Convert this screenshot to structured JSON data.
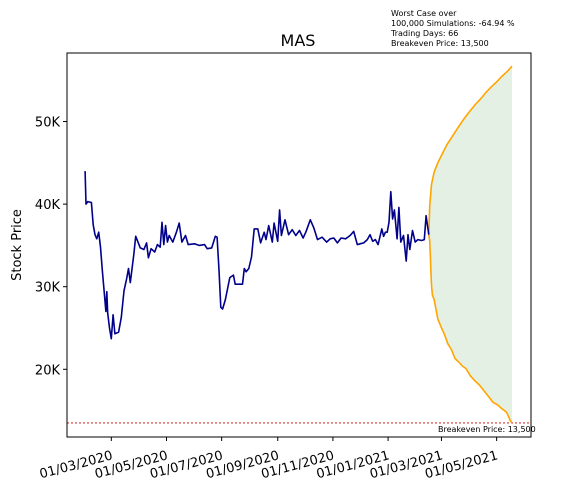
{
  "chart_data": {
    "type": "line",
    "title": "MAS",
    "xlabel": "",
    "ylabel": "Stock Price",
    "x_ticks": [
      "01/03/2020",
      "01/05/2020",
      "01/07/2020",
      "01/09/2020",
      "01/11/2020",
      "01/01/2021",
      "01/03/2021",
      "01/05/2021"
    ],
    "y_ticks": [
      "20K",
      "30K",
      "40K",
      "50K"
    ],
    "y_tick_values": [
      20000,
      30000,
      40000,
      50000
    ],
    "xlim": [
      "2020-01-12",
      "2021-06-08"
    ],
    "ylim": [
      11800,
      58300
    ],
    "grid": false,
    "colors": {
      "history": "#00008b",
      "upper_bound": "#ffa500",
      "lower_bound": "#ffa500",
      "projection_fill": "#e3f0e3",
      "breakeven_line": "#cc0000"
    },
    "annotations": {
      "worst_case": [
        "Worst Case over",
        "100,000 Simulations: -64.94 %",
        "Trading Days: 66",
        "Breakeven Price: 13,500"
      ],
      "breakeven_label": "Breakeven Price: 13,500"
    },
    "breakeven_price": 13500,
    "series": [
      {
        "role": "history",
        "points": [
          [
            "2020-02-01",
            44000
          ],
          [
            "2020-02-02",
            40000
          ],
          [
            "2020-02-04",
            40300
          ],
          [
            "2020-02-08",
            40200
          ],
          [
            "2020-02-10",
            37500
          ],
          [
            "2020-02-12",
            36300
          ],
          [
            "2020-02-14",
            35800
          ],
          [
            "2020-02-16",
            36600
          ],
          [
            "2020-02-18",
            34800
          ],
          [
            "2020-02-20",
            32000
          ],
          [
            "2020-02-22",
            29500
          ],
          [
            "2020-02-24",
            27000
          ],
          [
            "2020-02-25",
            29400
          ],
          [
            "2020-02-26",
            26800
          ],
          [
            "2020-02-28",
            25000
          ],
          [
            "2020-03-01",
            23700
          ],
          [
            "2020-03-03",
            26600
          ],
          [
            "2020-03-05",
            24300
          ],
          [
            "2020-03-09",
            24500
          ],
          [
            "2020-03-12",
            26300
          ],
          [
            "2020-03-15",
            29500
          ],
          [
            "2020-03-18",
            31000
          ],
          [
            "2020-03-20",
            32200
          ],
          [
            "2020-03-22",
            30500
          ],
          [
            "2020-03-26",
            34000
          ],
          [
            "2020-03-28",
            36100
          ],
          [
            "2020-04-02",
            34700
          ],
          [
            "2020-04-06",
            34500
          ],
          [
            "2020-04-09",
            35300
          ],
          [
            "2020-04-11",
            33500
          ],
          [
            "2020-04-14",
            34600
          ],
          [
            "2020-04-18",
            34200
          ],
          [
            "2020-04-21",
            35100
          ],
          [
            "2020-04-24",
            34800
          ],
          [
            "2020-04-26",
            37800
          ],
          [
            "2020-04-28",
            35100
          ],
          [
            "2020-04-30",
            37400
          ],
          [
            "2020-05-02",
            35400
          ],
          [
            "2020-05-04",
            36200
          ],
          [
            "2020-05-08",
            35400
          ],
          [
            "2020-05-12",
            36600
          ],
          [
            "2020-05-15",
            37700
          ],
          [
            "2020-05-18",
            35400
          ],
          [
            "2020-05-22",
            36200
          ],
          [
            "2020-05-25",
            35100
          ],
          [
            "2020-06-01",
            35200
          ],
          [
            "2020-06-06",
            35000
          ],
          [
            "2020-06-12",
            35100
          ],
          [
            "2020-06-15",
            34600
          ],
          [
            "2020-06-20",
            34700
          ],
          [
            "2020-06-24",
            36100
          ],
          [
            "2020-06-26",
            36000
          ],
          [
            "2020-06-28",
            32000
          ],
          [
            "2020-06-30",
            27500
          ],
          [
            "2020-07-02",
            27300
          ],
          [
            "2020-07-05",
            28400
          ],
          [
            "2020-07-10",
            31100
          ],
          [
            "2020-07-14",
            31400
          ],
          [
            "2020-07-16",
            30300
          ],
          [
            "2020-07-24",
            30300
          ],
          [
            "2020-07-26",
            32200
          ],
          [
            "2020-07-28",
            31800
          ],
          [
            "2020-07-31",
            32200
          ],
          [
            "2020-08-03",
            33600
          ],
          [
            "2020-08-06",
            37000
          ],
          [
            "2020-08-10",
            37000
          ],
          [
            "2020-08-13",
            35300
          ],
          [
            "2020-08-17",
            36600
          ],
          [
            "2020-08-19",
            35700
          ],
          [
            "2020-08-22",
            37400
          ],
          [
            "2020-08-26",
            35400
          ],
          [
            "2020-08-28",
            37700
          ],
          [
            "2020-09-01",
            35500
          ],
          [
            "2020-09-03",
            39300
          ],
          [
            "2020-09-05",
            36200
          ],
          [
            "2020-09-09",
            38100
          ],
          [
            "2020-09-13",
            36300
          ],
          [
            "2020-09-17",
            36900
          ],
          [
            "2020-09-21",
            36200
          ],
          [
            "2020-09-25",
            36800
          ],
          [
            "2020-09-29",
            35900
          ],
          [
            "2020-10-02",
            36600
          ],
          [
            "2020-10-07",
            38100
          ],
          [
            "2020-10-11",
            37100
          ],
          [
            "2020-10-15",
            35700
          ],
          [
            "2020-10-20",
            36000
          ],
          [
            "2020-10-25",
            35400
          ],
          [
            "2020-10-29",
            35800
          ],
          [
            "2020-11-02",
            35900
          ],
          [
            "2020-11-06",
            35300
          ],
          [
            "2020-11-10",
            35900
          ],
          [
            "2020-11-15",
            35800
          ],
          [
            "2020-11-20",
            36200
          ],
          [
            "2020-11-24",
            36700
          ],
          [
            "2020-11-28",
            35100
          ],
          [
            "2020-12-01",
            35200
          ],
          [
            "2020-12-05",
            35300
          ],
          [
            "2020-12-09",
            35700
          ],
          [
            "2020-12-12",
            36300
          ],
          [
            "2020-12-15",
            35500
          ],
          [
            "2020-12-18",
            35700
          ],
          [
            "2020-12-21",
            35100
          ],
          [
            "2020-12-25",
            37000
          ],
          [
            "2020-12-27",
            36100
          ],
          [
            "2020-12-29",
            36600
          ],
          [
            "2020-12-31",
            36600
          ],
          [
            "2021-01-02",
            37800
          ],
          [
            "2021-01-04",
            41500
          ],
          [
            "2021-01-06",
            38200
          ],
          [
            "2021-01-08",
            39300
          ],
          [
            "2021-01-11",
            35800
          ],
          [
            "2021-01-13",
            39600
          ],
          [
            "2021-01-15",
            35400
          ],
          [
            "2021-01-18",
            36200
          ],
          [
            "2021-01-21",
            33100
          ],
          [
            "2021-01-23",
            36300
          ],
          [
            "2021-01-25",
            34500
          ],
          [
            "2021-01-28",
            36800
          ],
          [
            "2021-01-31",
            35400
          ],
          [
            "2021-02-03",
            35700
          ],
          [
            "2021-02-07",
            35600
          ],
          [
            "2021-02-10",
            35700
          ],
          [
            "2021-02-12",
            38600
          ],
          [
            "2021-02-15",
            36300
          ]
        ]
      },
      {
        "role": "upper_bound",
        "points": [
          [
            "2021-02-15",
            36300
          ],
          [
            "2021-02-16",
            39800
          ],
          [
            "2021-02-18",
            42400
          ],
          [
            "2021-02-21",
            43900
          ],
          [
            "2021-02-25",
            45000
          ],
          [
            "2021-03-01",
            45900
          ],
          [
            "2021-03-07",
            47200
          ],
          [
            "2021-03-13",
            48200
          ],
          [
            "2021-03-19",
            49200
          ],
          [
            "2021-03-25",
            50200
          ],
          [
            "2021-04-01",
            51200
          ],
          [
            "2021-04-07",
            52000
          ],
          [
            "2021-04-13",
            52700
          ],
          [
            "2021-04-19",
            53500
          ],
          [
            "2021-04-25",
            54200
          ],
          [
            "2021-05-01",
            54800
          ],
          [
            "2021-05-07",
            55500
          ],
          [
            "2021-05-13",
            56100
          ],
          [
            "2021-05-18",
            56700
          ]
        ]
      },
      {
        "role": "lower_bound",
        "points": [
          [
            "2021-02-15",
            36300
          ],
          [
            "2021-02-16",
            35600
          ],
          [
            "2021-02-18",
            30200
          ],
          [
            "2021-02-19",
            29000
          ],
          [
            "2021-02-21",
            28400
          ],
          [
            "2021-02-25",
            26100
          ],
          [
            "2021-03-01",
            25000
          ],
          [
            "2021-03-04",
            24300
          ],
          [
            "2021-03-08",
            23100
          ],
          [
            "2021-03-12",
            22400
          ],
          [
            "2021-03-16",
            21300
          ],
          [
            "2021-03-20",
            20900
          ],
          [
            "2021-03-24",
            20400
          ],
          [
            "2021-03-28",
            20100
          ],
          [
            "2021-04-02",
            19200
          ],
          [
            "2021-04-07",
            18600
          ],
          [
            "2021-04-12",
            18100
          ],
          [
            "2021-04-17",
            17400
          ],
          [
            "2021-04-22",
            16700
          ],
          [
            "2021-04-27",
            16000
          ],
          [
            "2021-05-02",
            15700
          ],
          [
            "2021-05-07",
            15200
          ],
          [
            "2021-05-12",
            14800
          ],
          [
            "2021-05-16",
            13800
          ],
          [
            "2021-05-18",
            13500
          ]
        ]
      }
    ]
  }
}
